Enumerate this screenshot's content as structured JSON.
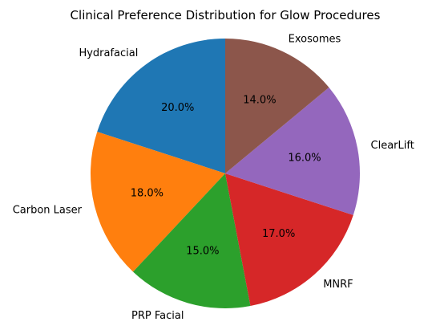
{
  "chart_data": {
    "type": "pie",
    "title": "Clinical Preference Distribution for Glow Procedures",
    "start_angle_deg": 90,
    "direction": "counterclockwise",
    "slices": [
      {
        "label": "Hydrafacial",
        "value": 20.0,
        "pct_label": "20.0%",
        "color": "#1f77b4"
      },
      {
        "label": "Carbon Laser",
        "value": 18.0,
        "pct_label": "18.0%",
        "color": "#ff7f0e"
      },
      {
        "label": "PRP Facial",
        "value": 15.0,
        "pct_label": "15.0%",
        "color": "#2ca02c"
      },
      {
        "label": "MNRF",
        "value": 17.0,
        "pct_label": "17.0%",
        "color": "#d62728"
      },
      {
        "label": "ClearLift",
        "value": 16.0,
        "pct_label": "16.0%",
        "color": "#9467bd"
      },
      {
        "label": "Exosomes",
        "value": 14.0,
        "pct_label": "14.0%",
        "color": "#8c564b"
      }
    ]
  }
}
